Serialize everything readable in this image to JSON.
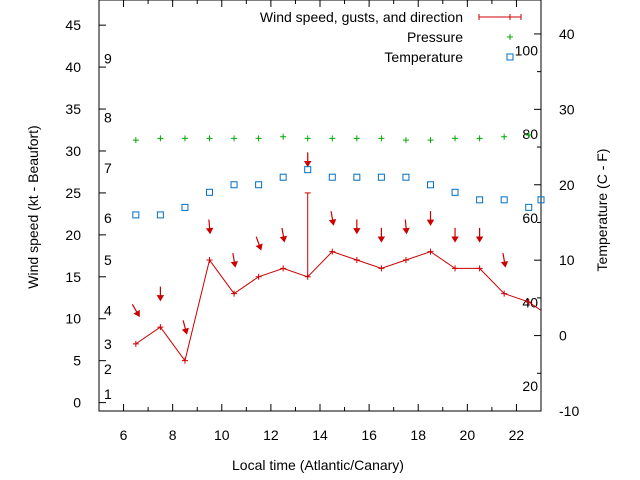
{
  "chart_data": {
    "type": "line",
    "title": "",
    "xlabel": "Local time (Atlantic/Canary)",
    "ylabel_left": "Wind speed (kt - Beaufort)",
    "ylabel_right": "Temperature (C - F)",
    "xlim": [
      5,
      23
    ],
    "ylim_left": [
      -1,
      48
    ],
    "ylim_right": [
      -10,
      44.5
    ],
    "x_ticks": [
      "6",
      "8",
      "10",
      "12",
      "14",
      "16",
      "18",
      "20",
      "22"
    ],
    "y_ticks_left": [
      "0",
      "5",
      "10",
      "15",
      "20",
      "25",
      "30",
      "35",
      "40",
      "45"
    ],
    "y_ticks_right": [
      "-10",
      "0",
      "10",
      "20",
      "30",
      "40"
    ],
    "grid": false,
    "legend_position": "top-right",
    "beaufort_labels": [
      {
        "label": "1",
        "kt": 1
      },
      {
        "label": "2",
        "kt": 4
      },
      {
        "label": "3",
        "kt": 7
      },
      {
        "label": "4",
        "kt": 11
      },
      {
        "label": "5",
        "kt": 17
      },
      {
        "label": "6",
        "kt": 22
      },
      {
        "label": "7",
        "kt": 28
      },
      {
        "label": "8",
        "kt": 34
      },
      {
        "label": "9",
        "kt": 41
      }
    ],
    "fahrenheit_labels": [
      {
        "label": "20",
        "c": -6.7
      },
      {
        "label": "40",
        "c": 4.4
      },
      {
        "label": "60",
        "c": 15.6
      },
      {
        "label": "80",
        "c": 26.7
      },
      {
        "label": "100",
        "c": 37.8
      }
    ],
    "series": [
      {
        "name": "Wind speed, gusts, and direction",
        "color": "#cc0000",
        "axis": "left",
        "x": [
          6.5,
          7.5,
          8.5,
          9.5,
          10.5,
          11.5,
          12.5,
          13.5,
          14.5,
          15.5,
          16.5,
          17.5,
          18.5,
          19.5,
          20.5,
          21.5,
          22.5,
          23
        ],
        "values": [
          7,
          9,
          5,
          17,
          13,
          15,
          16,
          15,
          18,
          17,
          16,
          17,
          18,
          16,
          16,
          13,
          12,
          11
        ],
        "gust_x": 13.5,
        "gust_value": 25,
        "direction_arrows": [
          {
            "x": 6.5,
            "y": 11,
            "deg": 150
          },
          {
            "x": 7.5,
            "y": 13,
            "deg": 180
          },
          {
            "x": 8.5,
            "y": 9,
            "deg": 165
          },
          {
            "x": 9.5,
            "y": 21,
            "deg": 175
          },
          {
            "x": 10.5,
            "y": 17,
            "deg": 170
          },
          {
            "x": 11.5,
            "y": 19,
            "deg": 160
          },
          {
            "x": 12.5,
            "y": 20,
            "deg": 170
          },
          {
            "x": 13.5,
            "y": 29,
            "deg": 180
          },
          {
            "x": 14.5,
            "y": 22,
            "deg": 170
          },
          {
            "x": 15.5,
            "y": 21,
            "deg": 180
          },
          {
            "x": 16.5,
            "y": 20,
            "deg": 180
          },
          {
            "x": 17.5,
            "y": 21,
            "deg": 175
          },
          {
            "x": 18.5,
            "y": 22,
            "deg": 180
          },
          {
            "x": 19.5,
            "y": 20,
            "deg": 180
          },
          {
            "x": 20.5,
            "y": 20,
            "deg": 180
          },
          {
            "x": 21.5,
            "y": 17,
            "deg": 170
          }
        ]
      },
      {
        "name": "Pressure",
        "color": "#00aa00",
        "axis": "left",
        "x": [
          6.5,
          7.5,
          8.5,
          9.5,
          10.5,
          11.5,
          12.5,
          13.5,
          14.5,
          15.5,
          16.5,
          17.5,
          18.5,
          19.5,
          20.5,
          21.5,
          22.5
        ],
        "values": [
          31.3,
          31.5,
          31.5,
          31.5,
          31.5,
          31.5,
          31.7,
          31.5,
          31.5,
          31.5,
          31.5,
          31.3,
          31.3,
          31.5,
          31.5,
          31.7,
          31.9
        ]
      },
      {
        "name": "Temperature",
        "color": "#0070c0",
        "axis": "right",
        "x": [
          6.5,
          7.5,
          8.5,
          9.5,
          10.5,
          11.5,
          12.5,
          13.5,
          14.5,
          15.5,
          16.5,
          17.5,
          18.5,
          19.5,
          20.5,
          21.5,
          22.5,
          23
        ],
        "values": [
          16,
          16,
          17,
          19,
          20,
          20,
          21,
          22,
          21,
          21,
          21,
          21,
          20,
          19,
          18,
          18,
          17,
          18
        ]
      }
    ]
  }
}
